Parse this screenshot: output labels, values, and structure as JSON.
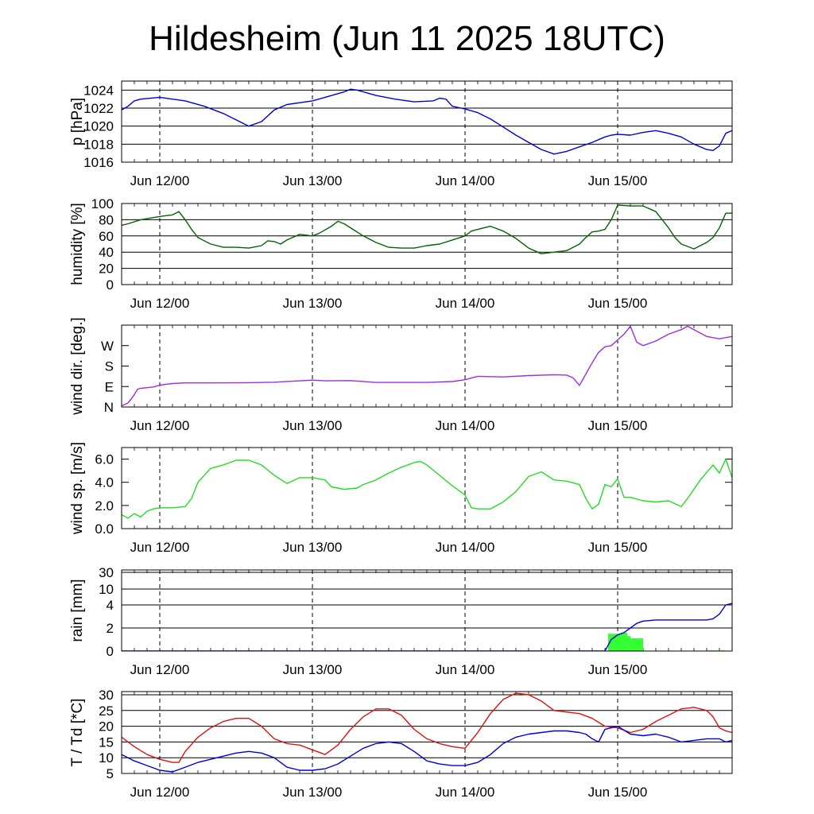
{
  "title": "Hildesheim (Jun 11 2025 18UTC)",
  "colors": {
    "pressure": "#0000dd",
    "humidity": "#006400",
    "wind_dir": "#9a2ee8",
    "wind_speed": "#22dd22",
    "rain_total": "#0000dd",
    "rain_bars": "#33ff33",
    "temperature": "#e01010",
    "dewpoint": "#0000dd"
  },
  "chart_data": [
    {
      "id": "pressure",
      "type": "line",
      "ylabel": "p [hPa]",
      "ylim": [
        1016,
        1025
      ],
      "yticks": [
        1016,
        1018,
        1020,
        1022,
        1024
      ],
      "yticklabels": [
        "1016",
        "1018",
        "1020",
        "1022",
        "1024"
      ],
      "xlim": [
        0,
        96
      ],
      "xticks": [
        6,
        30,
        54,
        78
      ],
      "xticklabels": [
        "Jun 12/00",
        "Jun 13/00",
        "Jun 14/00",
        "Jun 15/00"
      ],
      "grid": "horizontal",
      "series": [
        {
          "key": "pressure",
          "x": [
            0,
            1,
            2,
            3,
            6,
            8,
            10,
            13,
            16,
            20,
            22,
            24,
            26,
            28,
            30,
            32,
            35,
            36,
            37,
            40,
            43,
            46,
            49,
            50,
            51,
            52,
            54,
            56,
            58,
            60,
            62,
            64,
            66,
            68,
            70,
            72,
            74,
            76,
            77,
            78,
            80,
            82,
            84,
            86,
            88,
            90,
            92,
            93,
            94,
            95,
            96
          ],
          "y": [
            1021.8,
            1022.2,
            1022.8,
            1023.0,
            1023.2,
            1023.0,
            1022.8,
            1022.2,
            1021.4,
            1020.0,
            1020.5,
            1021.8,
            1022.4,
            1022.6,
            1022.8,
            1023.2,
            1023.8,
            1024.1,
            1024.0,
            1023.4,
            1023.0,
            1022.7,
            1022.8,
            1023.1,
            1023.0,
            1022.2,
            1021.9,
            1021.5,
            1020.8,
            1019.9,
            1019.0,
            1018.2,
            1017.4,
            1016.9,
            1017.2,
            1017.7,
            1018.2,
            1018.8,
            1019.0,
            1019.1,
            1019.0,
            1019.3,
            1019.5,
            1019.2,
            1018.8,
            1018.0,
            1017.4,
            1017.3,
            1017.8,
            1019.2,
            1019.5
          ]
        }
      ]
    },
    {
      "id": "humidity",
      "type": "line",
      "ylabel": "humidity [%]",
      "ylim": [
        0,
        100
      ],
      "yticks": [
        0,
        20,
        40,
        60,
        80,
        100
      ],
      "yticklabels": [
        "0",
        "20",
        "40",
        "60",
        "80",
        "100"
      ],
      "xlim": [
        0,
        96
      ],
      "xticks": [
        6,
        30,
        54,
        78
      ],
      "xticklabels": [
        "Jun 12/00",
        "Jun 13/00",
        "Jun 14/00",
        "Jun 15/00"
      ],
      "grid": "horizontal",
      "series": [
        {
          "key": "humidity",
          "x": [
            0,
            1,
            3,
            6,
            8,
            9,
            10,
            11,
            12,
            14,
            16,
            18,
            20,
            22,
            23,
            24,
            25,
            26,
            28,
            30,
            31,
            33,
            34,
            35,
            36,
            38,
            40,
            42,
            44,
            46,
            48,
            50,
            52,
            54,
            55,
            56,
            57,
            58,
            60,
            62,
            64,
            66,
            68,
            70,
            72,
            73,
            74,
            75,
            76,
            77,
            78,
            80,
            82,
            84,
            86,
            87,
            88,
            90,
            91,
            92,
            93,
            94,
            95,
            96
          ],
          "y": [
            73,
            75,
            80,
            84,
            86,
            90,
            80,
            68,
            58,
            50,
            46,
            46,
            45,
            48,
            54,
            53,
            50,
            55,
            62,
            60,
            63,
            72,
            78,
            75,
            70,
            60,
            52,
            46,
            45,
            45,
            48,
            50,
            55,
            60,
            66,
            68,
            70,
            72,
            66,
            57,
            45,
            38,
            40,
            42,
            50,
            58,
            65,
            66,
            68,
            80,
            98,
            97,
            97,
            90,
            70,
            58,
            50,
            44,
            48,
            52,
            58,
            70,
            88,
            88
          ]
        }
      ]
    },
    {
      "id": "wind_dir",
      "type": "line",
      "ylabel": "wind dir. [deg.]",
      "ylim": [
        0,
        360
      ],
      "yticks": [
        0,
        90,
        180,
        270
      ],
      "yticklabels": [
        "N",
        "E",
        "S",
        "W"
      ],
      "xlim": [
        0,
        96
      ],
      "xticks": [
        6,
        30,
        54,
        78
      ],
      "xticklabels": [
        "Jun 12/00",
        "Jun 13/00",
        "Jun 14/00",
        "Jun 15/00"
      ],
      "grid": "ticks",
      "series": [
        {
          "key": "wind_dir",
          "x": [
            0,
            1,
            1.5,
            2,
            2.5,
            3,
            4,
            5,
            6,
            7,
            8,
            10,
            14,
            20,
            24,
            28,
            30,
            32,
            36,
            40,
            44,
            48,
            52,
            54,
            56,
            60,
            64,
            68,
            70,
            71,
            72,
            73,
            74,
            75,
            76,
            77,
            78,
            79,
            80,
            81,
            82,
            84,
            86,
            88,
            89,
            90,
            92,
            94,
            96
          ],
          "y": [
            5,
            18,
            35,
            55,
            78,
            82,
            85,
            88,
            96,
            100,
            103,
            106,
            106,
            107,
            109,
            115,
            118,
            115,
            116,
            108,
            108,
            108,
            112,
            120,
            135,
            132,
            138,
            142,
            140,
            128,
            95,
            145,
            195,
            240,
            265,
            270,
            295,
            320,
            355,
            285,
            270,
            290,
            320,
            340,
            355,
            340,
            310,
            300,
            310
          ]
        }
      ]
    },
    {
      "id": "wind_speed",
      "type": "line",
      "ylabel": "wind sp. [m/s]",
      "ylim": [
        0,
        7
      ],
      "yticks": [
        0,
        2,
        4,
        6
      ],
      "yticklabels": [
        "0.0",
        "2.0",
        "4.0",
        "6.0"
      ],
      "xlim": [
        0,
        96
      ],
      "xticks": [
        6,
        30,
        54,
        78
      ],
      "xticklabels": [
        "Jun 12/00",
        "Jun 13/00",
        "Jun 14/00",
        "Jun 15/00"
      ],
      "grid": "ticks",
      "series": [
        {
          "key": "wind_speed",
          "x": [
            0,
            1,
            2,
            3,
            4,
            5,
            6,
            8,
            10,
            11,
            12,
            14,
            16,
            18,
            20,
            22,
            24,
            26,
            28,
            30,
            32,
            33,
            35,
            37,
            38,
            40,
            42,
            44,
            46,
            47,
            48,
            50,
            52,
            54,
            55,
            56,
            58,
            59,
            60,
            62,
            64,
            66,
            68,
            70,
            72,
            73,
            74,
            75,
            76,
            77,
            78,
            79,
            80,
            82,
            84,
            86,
            88,
            89,
            91,
            93,
            94,
            95,
            96
          ],
          "y": [
            1.2,
            0.9,
            1.3,
            1.0,
            1.5,
            1.7,
            1.8,
            1.8,
            1.9,
            2.6,
            4.0,
            5.2,
            5.5,
            5.9,
            5.9,
            5.5,
            4.6,
            3.9,
            4.4,
            4.4,
            4.2,
            3.6,
            3.4,
            3.5,
            3.8,
            4.2,
            4.8,
            5.3,
            5.7,
            5.8,
            5.5,
            4.6,
            3.7,
            2.9,
            1.8,
            1.7,
            1.7,
            2.0,
            2.3,
            3.2,
            4.5,
            4.9,
            4.2,
            4.1,
            3.8,
            2.6,
            1.7,
            2.1,
            3.8,
            3.6,
            4.3,
            2.7,
            2.7,
            2.4,
            2.3,
            2.4,
            1.9,
            2.6,
            4.2,
            5.5,
            4.8,
            6.0,
            4.4
          ]
        }
      ]
    },
    {
      "id": "rain",
      "type": "bar",
      "ylabel": "rain [mm]",
      "yscale": "nonlinear",
      "ylim": [
        0,
        40
      ],
      "yticks": [
        0,
        2,
        4,
        10,
        30
      ],
      "yticklabels": [
        "0",
        "2",
        "4",
        "10",
        "30"
      ],
      "xlim": [
        0,
        96
      ],
      "xticks": [
        6,
        30,
        54,
        78
      ],
      "xticklabels": [
        "Jun 12/00",
        "Jun 13/00",
        "Jun 14/00",
        "Jun 15/00"
      ],
      "grid": "horizontal",
      "bars": {
        "key": "rain_bars",
        "x0": [
          76.5,
          78.5,
          79.5,
          80.0,
          92.0
        ],
        "x1": [
          78.5,
          79.5,
          80.0,
          82.0,
          95.0
        ],
        "y": [
          1.5,
          1.6,
          1.3,
          1.1,
          0.05
        ]
      },
      "series": [
        {
          "key": "rain_total",
          "x": [
            0,
            76,
            77,
            78,
            79,
            80,
            81,
            82,
            84,
            86,
            88,
            90,
            92,
            93,
            94,
            95,
            96
          ],
          "y": [
            0,
            0,
            1.0,
            1.4,
            1.6,
            2.0,
            2.4,
            2.6,
            2.7,
            2.7,
            2.7,
            2.7,
            2.7,
            2.8,
            3.2,
            4.0,
            4.6
          ]
        }
      ]
    },
    {
      "id": "temperature",
      "type": "line",
      "ylabel": "T / Td [*C]",
      "ylim": [
        5,
        31
      ],
      "yticks": [
        5,
        10,
        15,
        20,
        25,
        30
      ],
      "yticklabels": [
        "5",
        "10",
        "15",
        "20",
        "25",
        "30"
      ],
      "xlim": [
        0,
        96
      ],
      "xticks": [
        6,
        30,
        54,
        78
      ],
      "xticklabels": [
        "Jun 12/00",
        "Jun 13/00",
        "Jun 14/00",
        "Jun 15/00"
      ],
      "grid": "horizontal",
      "series": [
        {
          "key": "temperature",
          "x": [
            0,
            2,
            4,
            6,
            8,
            9,
            10,
            12,
            14,
            16,
            18,
            20,
            22,
            24,
            26,
            28,
            30,
            32,
            34,
            36,
            38,
            40,
            42,
            44,
            46,
            48,
            50,
            52,
            54,
            56,
            58,
            60,
            62,
            64,
            66,
            68,
            70,
            72,
            74,
            76,
            78,
            80,
            82,
            84,
            86,
            88,
            90,
            92,
            93,
            94,
            95,
            96
          ],
          "y": [
            16.5,
            13.5,
            11,
            9.5,
            8.5,
            8.5,
            12,
            16.5,
            19.5,
            21.5,
            22.5,
            22.5,
            20,
            16,
            14.5,
            14,
            12.5,
            11,
            14,
            19,
            23,
            25.5,
            25.5,
            23.5,
            19,
            16,
            14.5,
            13.5,
            13,
            18,
            24,
            28.5,
            30.5,
            30,
            28,
            25,
            24.5,
            24,
            22.5,
            20,
            19.5,
            18,
            19,
            21.5,
            23.5,
            25.5,
            26,
            25,
            23,
            19.5,
            18.5,
            18
          ]
        },
        {
          "key": "dewpoint",
          "x": [
            0,
            2,
            4,
            6,
            8,
            10,
            12,
            14,
            16,
            18,
            20,
            22,
            24,
            26,
            28,
            30,
            32,
            34,
            36,
            38,
            40,
            42,
            44,
            46,
            48,
            50,
            52,
            54,
            56,
            58,
            60,
            62,
            64,
            66,
            68,
            70,
            72,
            73,
            74,
            75,
            76,
            78,
            80,
            82,
            84,
            86,
            88,
            90,
            92,
            94,
            95,
            96
          ],
          "y": [
            11,
            9,
            7.5,
            6,
            5.5,
            7,
            8.5,
            9.5,
            10.5,
            11.5,
            12,
            11.5,
            10,
            7,
            6,
            6,
            6.5,
            8,
            10.5,
            13,
            14.5,
            15,
            14.5,
            12,
            9,
            8,
            7.5,
            7.5,
            8.5,
            11,
            14.5,
            16.5,
            17.5,
            18,
            18.5,
            18.5,
            18,
            17.5,
            16,
            15,
            19,
            20,
            17.5,
            17,
            17.5,
            16.5,
            15,
            15.5,
            16,
            16,
            15,
            15.5
          ]
        }
      ]
    }
  ]
}
